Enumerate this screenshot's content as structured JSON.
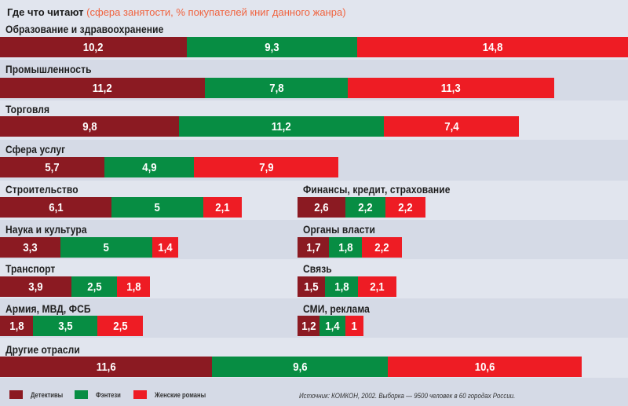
{
  "colors": {
    "detectives": "#8b1a22",
    "fantasy": "#078d43",
    "romance": "#ee1c24",
    "label_subtitle": "#f0633f"
  },
  "header": {
    "title": "Где что читают",
    "subtitle": "(сфера занятости, % покупателей книг данного жанра)"
  },
  "legend": {
    "items": [
      {
        "label": "Детективы",
        "color_key": "detectives"
      },
      {
        "label": "Фэнтези",
        "color_key": "fantasy"
      },
      {
        "label": "Женские романы",
        "color_key": "romance"
      }
    ]
  },
  "source": "Источник: КОМКОН, 2002. Выборка — 9500 человек в 60 городах России.",
  "chart_data": {
    "type": "bar",
    "orientation": "horizontal",
    "stacked": true,
    "title": "Где что читают",
    "subtitle": "(сфера занятости, % покупателей книг данного жанра)",
    "units": "%",
    "legend_position": "bottom-left",
    "series_names": [
      "Детективы",
      "Фэнтези",
      "Женские романы"
    ],
    "categories": [
      "Образование и здравоохранение",
      "Промышленность",
      "Торговля",
      "Сфера услуг",
      "Строительство",
      "Финансы, кредит, страхование",
      "Наука и культура",
      "Органы власти",
      "Транспорт",
      "Связь",
      "Армия, МВД, ФСБ",
      "СМИ, реклама",
      "Другие отрасли"
    ],
    "series": [
      {
        "name": "Детективы",
        "values": [
          10.2,
          11.2,
          9.8,
          5.7,
          6.1,
          2.6,
          3.3,
          1.7,
          3.9,
          1.5,
          1.8,
          1.2,
          11.6
        ]
      },
      {
        "name": "Фэнтези",
        "values": [
          9.3,
          7.8,
          11.2,
          4.9,
          5,
          2.2,
          5,
          1.8,
          2.5,
          1.8,
          3.5,
          1.4,
          9.6
        ]
      },
      {
        "name": "Женские романы",
        "values": [
          14.8,
          11.3,
          7.4,
          7.9,
          2.1,
          2.2,
          1.4,
          2.2,
          1.8,
          2.1,
          2.5,
          1,
          10.6
        ]
      }
    ],
    "value_labels": [
      [
        "10,2",
        "9,3",
        "14,8"
      ],
      [
        "11,2",
        "7,8",
        "11,3"
      ],
      [
        "9,8",
        "11,2",
        "7,4"
      ],
      [
        "5,7",
        "4,9",
        "7,9"
      ],
      [
        "6,1",
        "5",
        "2,1"
      ],
      [
        "2,6",
        "2,2",
        "2,2"
      ],
      [
        "3,3",
        "5",
        "1,4"
      ],
      [
        "1,7",
        "1,8",
        "2,2"
      ],
      [
        "3,9",
        "2,5",
        "1,8"
      ],
      [
        "1,5",
        "1,8",
        "2,1"
      ],
      [
        "1,8",
        "3,5",
        "2,5"
      ],
      [
        "1,2",
        "1,4",
        "1"
      ],
      [
        "11,6",
        "9,6",
        "10,6"
      ]
    ]
  }
}
